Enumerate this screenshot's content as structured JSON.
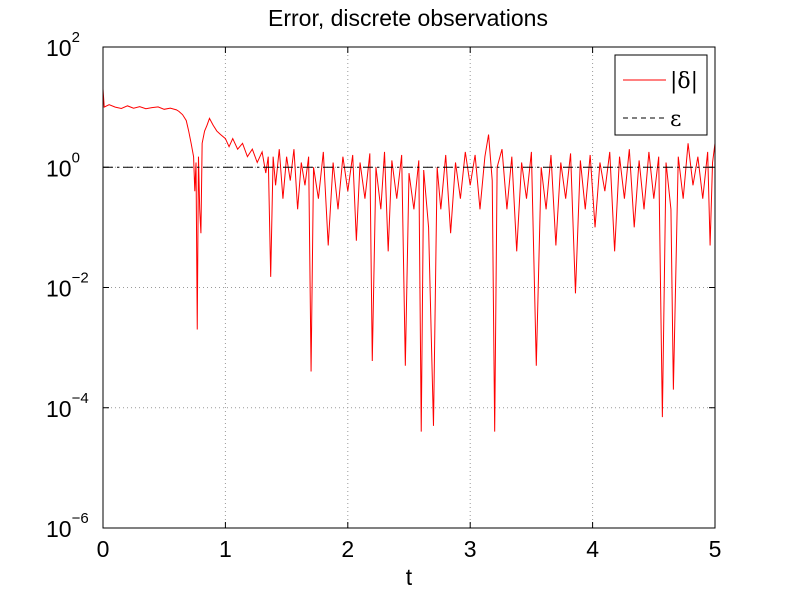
{
  "chart_data": {
    "type": "line",
    "title": "Error, discrete observations",
    "xlabel": "t",
    "ylabel": "",
    "xlim": [
      0,
      5
    ],
    "ylim": [
      1e-06,
      100
    ],
    "yscale": "log",
    "grid": true,
    "legend_position": "top-right",
    "x_ticks": [
      {
        "value": 0,
        "label": "0"
      },
      {
        "value": 1,
        "label": "1"
      },
      {
        "value": 2,
        "label": "2"
      },
      {
        "value": 3,
        "label": "3"
      },
      {
        "value": 4,
        "label": "4"
      },
      {
        "value": 5,
        "label": "5"
      }
    ],
    "y_ticks": [
      {
        "value": 1e-06,
        "base": "10",
        "exp": "−6"
      },
      {
        "value": 0.0001,
        "base": "10",
        "exp": "−4"
      },
      {
        "value": 0.01,
        "base": "10",
        "exp": "−2"
      },
      {
        "value": 1,
        "base": "10",
        "exp": "0"
      },
      {
        "value": 100,
        "base": "10",
        "exp": "2"
      }
    ],
    "series": [
      {
        "name": "|δ|",
        "color": "#ff0000",
        "style": "solid",
        "points": [
          [
            0.0,
            20
          ],
          [
            0.01,
            10
          ],
          [
            0.05,
            11
          ],
          [
            0.1,
            10
          ],
          [
            0.15,
            9.5
          ],
          [
            0.2,
            10.5
          ],
          [
            0.25,
            9.6
          ],
          [
            0.3,
            10.2
          ],
          [
            0.35,
            9.4
          ],
          [
            0.4,
            9.8
          ],
          [
            0.45,
            10.1
          ],
          [
            0.5,
            9.2
          ],
          [
            0.55,
            9.6
          ],
          [
            0.6,
            9.0
          ],
          [
            0.62,
            8.5
          ],
          [
            0.65,
            7.5
          ],
          [
            0.68,
            6.0
          ],
          [
            0.7,
            4.0
          ],
          [
            0.72,
            2.5
          ],
          [
            0.74,
            1.5
          ],
          [
            0.75,
            0.4
          ],
          [
            0.76,
            1.2
          ],
          [
            0.77,
            0.002
          ],
          [
            0.78,
            1.5
          ],
          [
            0.79,
            0.2
          ],
          [
            0.8,
            0.08
          ],
          [
            0.81,
            2.5
          ],
          [
            0.83,
            4.0
          ],
          [
            0.85,
            5.0
          ],
          [
            0.87,
            6.5
          ],
          [
            0.9,
            5.0
          ],
          [
            0.93,
            4.0
          ],
          [
            0.96,
            3.5
          ],
          [
            1.0,
            3.0
          ],
          [
            1.03,
            2.2
          ],
          [
            1.06,
            3.0
          ],
          [
            1.1,
            2.0
          ],
          [
            1.14,
            2.5
          ],
          [
            1.18,
            1.5
          ],
          [
            1.22,
            2.0
          ],
          [
            1.26,
            1.2
          ],
          [
            1.3,
            1.8
          ],
          [
            1.33,
            0.8
          ],
          [
            1.35,
            1.5
          ],
          [
            1.37,
            0.015
          ],
          [
            1.39,
            1.5
          ],
          [
            1.41,
            0.5
          ],
          [
            1.44,
            2.0
          ],
          [
            1.47,
            0.3
          ],
          [
            1.5,
            1.5
          ],
          [
            1.53,
            0.6
          ],
          [
            1.56,
            2.0
          ],
          [
            1.59,
            0.2
          ],
          [
            1.62,
            1.2
          ],
          [
            1.65,
            0.5
          ],
          [
            1.68,
            1.5
          ],
          [
            1.7,
            0.0004
          ],
          [
            1.72,
            1.0
          ],
          [
            1.76,
            0.3
          ],
          [
            1.8,
            1.8
          ],
          [
            1.84,
            0.05
          ],
          [
            1.88,
            1.2
          ],
          [
            1.92,
            0.2
          ],
          [
            1.96,
            1.5
          ],
          [
            2.0,
            0.4
          ],
          [
            2.04,
            1.6
          ],
          [
            2.07,
            0.06
          ],
          [
            2.1,
            1.2
          ],
          [
            2.14,
            0.3
          ],
          [
            2.18,
            1.7
          ],
          [
            2.2,
            0.0006
          ],
          [
            2.23,
            1.0
          ],
          [
            2.27,
            0.2
          ],
          [
            2.3,
            1.8
          ],
          [
            2.33,
            0.04
          ],
          [
            2.36,
            1.3
          ],
          [
            2.4,
            0.3
          ],
          [
            2.44,
            1.6
          ],
          [
            2.47,
            0.0005
          ],
          [
            2.5,
            0.8
          ],
          [
            2.54,
            0.2
          ],
          [
            2.58,
            1.3
          ],
          [
            2.6,
            4e-05
          ],
          [
            2.62,
            0.9
          ],
          [
            2.66,
            0.1
          ],
          [
            2.7,
            5e-05
          ],
          [
            2.73,
            1.0
          ],
          [
            2.76,
            0.2
          ],
          [
            2.8,
            1.6
          ],
          [
            2.84,
            0.08
          ],
          [
            2.88,
            1.2
          ],
          [
            2.92,
            0.3
          ],
          [
            2.96,
            1.8
          ],
          [
            3.0,
            0.5
          ],
          [
            3.04,
            1.6
          ],
          [
            3.08,
            0.2
          ],
          [
            3.12,
            1.5
          ],
          [
            3.15,
            3.5
          ],
          [
            3.18,
            0.6
          ],
          [
            3.2,
            4e-05
          ],
          [
            3.22,
            1.0
          ],
          [
            3.26,
            2.0
          ],
          [
            3.3,
            0.2
          ],
          [
            3.34,
            1.5
          ],
          [
            3.38,
            0.04
          ],
          [
            3.42,
            1.2
          ],
          [
            3.46,
            0.3
          ],
          [
            3.5,
            1.8
          ],
          [
            3.54,
            0.0005
          ],
          [
            3.58,
            1.0
          ],
          [
            3.62,
            0.2
          ],
          [
            3.66,
            1.6
          ],
          [
            3.7,
            0.05
          ],
          [
            3.74,
            1.2
          ],
          [
            3.78,
            0.3
          ],
          [
            3.82,
            1.7
          ],
          [
            3.86,
            0.008
          ],
          [
            3.9,
            1.3
          ],
          [
            3.94,
            0.2
          ],
          [
            3.98,
            1.6
          ],
          [
            4.02,
            0.1
          ],
          [
            4.06,
            1.2
          ],
          [
            4.1,
            0.4
          ],
          [
            4.14,
            1.8
          ],
          [
            4.18,
            0.04
          ],
          [
            4.22,
            1.5
          ],
          [
            4.26,
            0.3
          ],
          [
            4.3,
            2.0
          ],
          [
            4.34,
            0.1
          ],
          [
            4.38,
            1.3
          ],
          [
            4.42,
            0.2
          ],
          [
            4.46,
            1.8
          ],
          [
            4.5,
            0.3
          ],
          [
            4.54,
            1.5
          ],
          [
            4.57,
            7e-05
          ],
          [
            4.6,
            1.2
          ],
          [
            4.64,
            0.2
          ],
          [
            4.66,
            0.0002
          ],
          [
            4.7,
            1.5
          ],
          [
            4.74,
            0.3
          ],
          [
            4.78,
            2.5
          ],
          [
            4.82,
            0.5
          ],
          [
            4.86,
            1.5
          ],
          [
            4.9,
            0.3
          ],
          [
            4.94,
            1.8
          ],
          [
            4.96,
            0.05
          ],
          [
            4.98,
            1.2
          ],
          [
            5.0,
            2.5
          ]
        ]
      },
      {
        "name": "ε",
        "color": "#000000",
        "style": "dash-dot",
        "points": [
          [
            0,
            1
          ],
          [
            5,
            1
          ]
        ]
      }
    ]
  }
}
